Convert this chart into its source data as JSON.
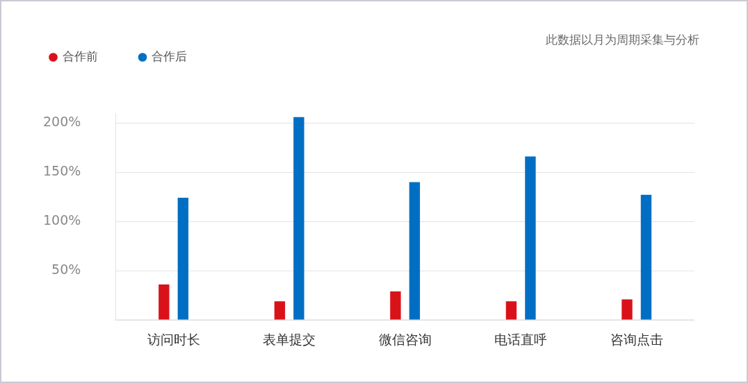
{
  "chart_data": {
    "type": "bar",
    "categories": [
      "访问时长",
      "表单提交",
      "微信咨询",
      "电话直呼",
      "咨询点击"
    ],
    "series": [
      {
        "name": "合作前",
        "color": "#d9121a",
        "values": [
          36,
          19,
          29,
          19,
          21
        ]
      },
      {
        "name": "合作后",
        "color": "#006fc3",
        "values": [
          124,
          206,
          140,
          166,
          127
        ]
      }
    ],
    "ylim": [
      0,
      210
    ],
    "yticks": [
      {
        "value": 50,
        "label": "50%"
      },
      {
        "value": 100,
        "label": "100%"
      },
      {
        "value": 150,
        "label": "150%"
      },
      {
        "value": 200,
        "label": "200%"
      }
    ],
    "grid": "y",
    "legend": "top left",
    "annotations": [
      "此数据以月为周期采集与分析"
    ]
  }
}
